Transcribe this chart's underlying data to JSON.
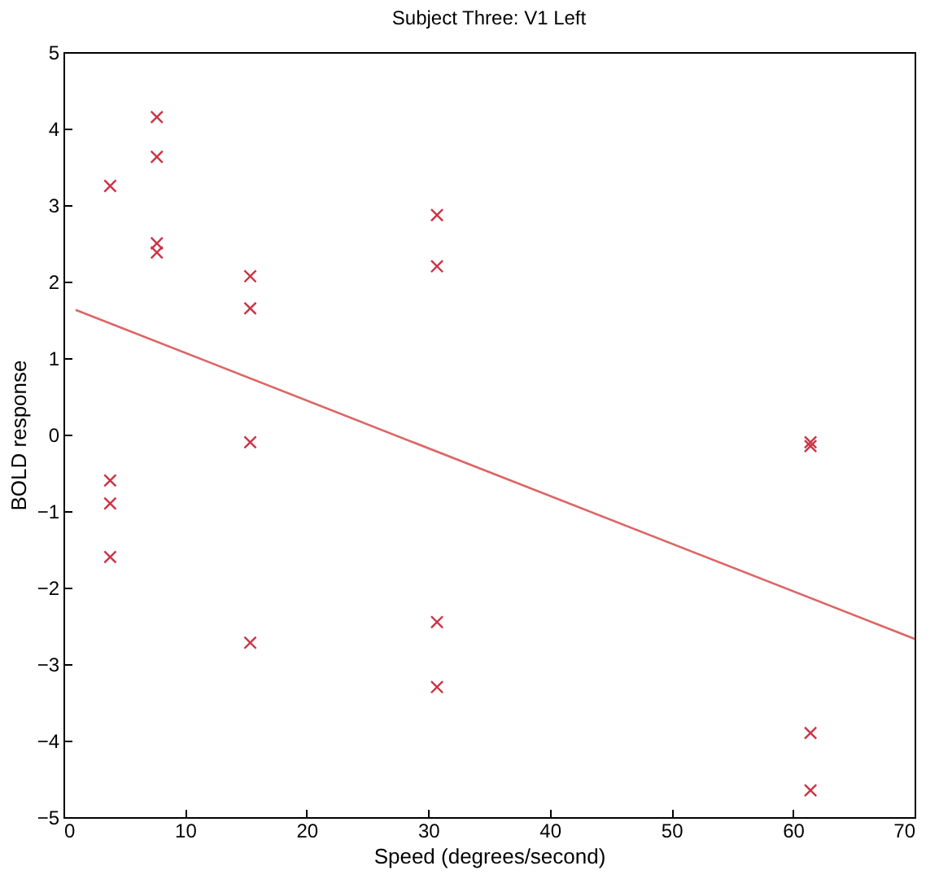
{
  "chart_data": {
    "type": "scatter",
    "title": "Subject Three: V1 Left",
    "xlabel": "Speed (degrees/second)",
    "ylabel": "BOLD response",
    "xlim": [
      0,
      70
    ],
    "xticks": [
      0,
      10,
      20,
      30,
      40,
      50,
      60,
      70
    ],
    "ylim": [
      -5,
      5
    ],
    "yticks": [
      -5,
      -4,
      -3,
      -2,
      -1,
      0,
      1,
      2,
      3,
      4,
      5
    ],
    "grid": false,
    "series": [
      {
        "color": "#cc3344",
        "marker": "cross",
        "x": [
          3.84,
          3.84,
          3.84,
          3.84,
          7.68,
          7.68,
          7.68,
          7.68,
          15.36,
          15.36,
          15.36,
          15.36,
          30.72,
          30.72,
          30.72,
          30.72,
          61.44,
          61.44,
          61.44,
          61.44
        ],
        "values": [
          3.25,
          -0.6,
          -0.9,
          -1.6,
          4.15,
          3.63,
          2.5,
          2.38,
          2.07,
          1.65,
          -0.1,
          -2.72,
          2.87,
          2.2,
          -2.45,
          -3.3,
          -0.1,
          -0.15,
          -3.9,
          -4.65
        ]
      },
      {
        "type": "line",
        "marker": "none",
        "color": "#dd6666",
        "x": [
          1,
          70
        ],
        "values": [
          1.63,
          -2.67
        ]
      }
    ]
  }
}
